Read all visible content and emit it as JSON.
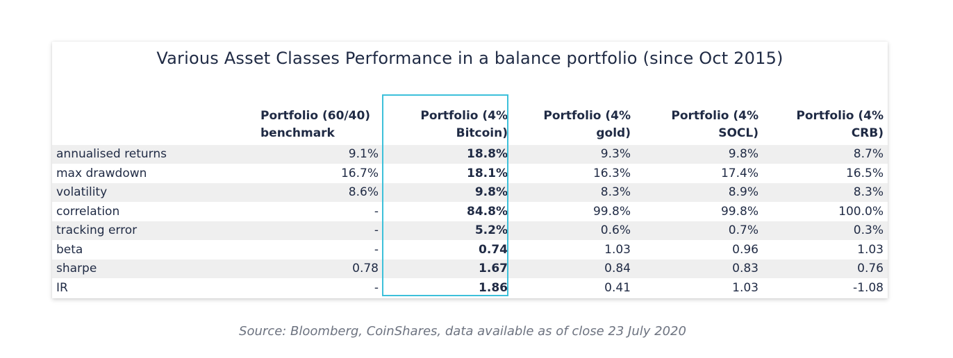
{
  "chart_data": {
    "type": "table",
    "title": "Various Asset Classes Performance in a balance portfolio (since Oct 2015)",
    "columns": [
      [
        "Portfolio (60/40)",
        "benchmark"
      ],
      [
        "Portfolio (4%",
        "Bitcoin)"
      ],
      [
        "Portfolio (4%",
        "gold)"
      ],
      [
        "Portfolio (4%",
        "SOCL)"
      ],
      [
        "Portfolio (4%",
        "CRB)"
      ]
    ],
    "rows": [
      {
        "label": "annualised returns",
        "values": [
          "9.1%",
          "18.8%",
          "9.3%",
          "9.8%",
          "8.7%"
        ]
      },
      {
        "label": "max drawdown",
        "values": [
          "16.7%",
          "18.1%",
          "16.3%",
          "17.4%",
          "16.5%"
        ]
      },
      {
        "label": "volatility",
        "values": [
          "8.6%",
          "9.8%",
          "8.3%",
          "8.9%",
          "8.3%"
        ]
      },
      {
        "label": "correlation",
        "values": [
          "-",
          "84.8%",
          "99.8%",
          "99.8%",
          "100.0%"
        ]
      },
      {
        "label": "tracking error",
        "values": [
          "-",
          "5.2%",
          "0.6%",
          "0.7%",
          "0.3%"
        ]
      },
      {
        "label": "beta",
        "values": [
          "-",
          "0.74",
          "1.03",
          "0.96",
          "1.03"
        ]
      },
      {
        "label": "sharpe",
        "values": [
          "0.78",
          "1.67",
          "0.84",
          "0.83",
          "0.76"
        ]
      },
      {
        "label": "IR",
        "values": [
          "-",
          "1.86",
          "0.41",
          "1.03",
          "-1.08"
        ]
      }
    ],
    "highlighted_column": 1,
    "highlight_color": "#3cc0da",
    "row_shade_color": "#efefef"
  },
  "source": "Source: Bloomberg, CoinShares, data available as of close 23 July 2020"
}
